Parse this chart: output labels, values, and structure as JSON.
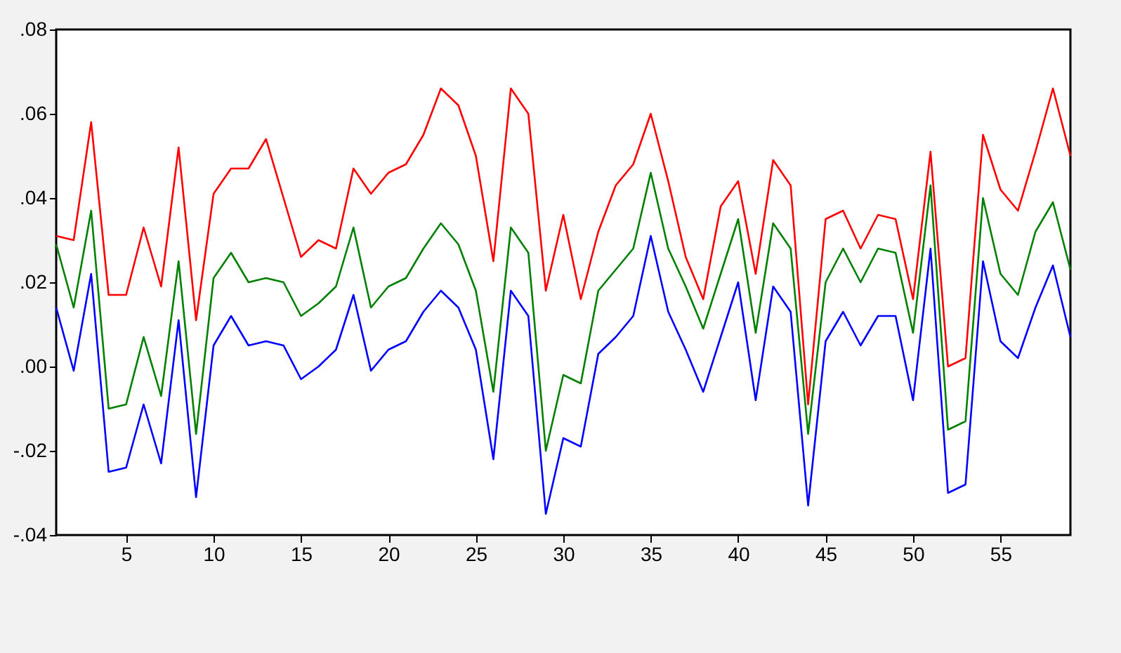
{
  "chart_data": {
    "type": "line",
    "x": [
      1,
      2,
      3,
      4,
      5,
      6,
      7,
      8,
      9,
      10,
      11,
      12,
      13,
      14,
      15,
      16,
      17,
      18,
      19,
      20,
      21,
      22,
      23,
      24,
      25,
      26,
      27,
      28,
      29,
      30,
      31,
      32,
      33,
      34,
      35,
      36,
      37,
      38,
      39,
      40,
      41,
      42,
      43,
      44,
      45,
      46,
      47,
      48,
      49,
      50,
      51,
      52,
      53,
      54,
      55,
      56,
      57,
      58,
      59
    ],
    "xlim": [
      1,
      59
    ],
    "xticks": [
      5,
      10,
      15,
      20,
      25,
      30,
      35,
      40,
      45,
      50,
      55
    ],
    "ylim": [
      -0.04,
      0.08
    ],
    "yticks": [
      {
        "value": -0.04,
        "label": "-.04"
      },
      {
        "value": -0.02,
        "label": "-.02"
      },
      {
        "value": 0,
        "label": ".00"
      },
      {
        "value": 0.02,
        "label": ".02"
      },
      {
        "value": 0.04,
        "label": ".04"
      },
      {
        "value": 0.06,
        "label": ".06"
      },
      {
        "value": 0.08,
        "label": ".08"
      }
    ],
    "grid": false,
    "marker": "none",
    "line_style": "solid",
    "series": [
      {
        "color": "#0000ff",
        "values": [
          0.014,
          -0.001,
          0.022,
          -0.025,
          -0.024,
          -0.009,
          -0.023,
          0.011,
          -0.031,
          0.005,
          0.012,
          0.005,
          0.006,
          0.005,
          -0.003,
          0.0,
          0.004,
          0.017,
          -0.001,
          0.004,
          0.006,
          0.013,
          0.018,
          0.014,
          0.004,
          -0.022,
          0.018,
          0.012,
          -0.035,
          -0.017,
          -0.019,
          0.003,
          0.007,
          0.012,
          0.031,
          0.013,
          0.004,
          -0.006,
          0.007,
          0.02,
          -0.008,
          0.019,
          0.013,
          -0.033,
          0.006,
          0.013,
          0.005,
          0.012,
          0.012,
          -0.008,
          0.028,
          -0.03,
          -0.028,
          0.025,
          0.006,
          0.002,
          0.014,
          0.024,
          0.007
        ]
      },
      {
        "color": "#ff0000",
        "values": [
          0.031,
          0.03,
          0.058,
          0.017,
          0.017,
          0.033,
          0.019,
          0.052,
          0.011,
          0.041,
          0.047,
          0.047,
          0.054,
          0.04,
          0.026,
          0.03,
          0.028,
          0.047,
          0.041,
          0.046,
          0.048,
          0.055,
          0.066,
          0.062,
          0.05,
          0.025,
          0.066,
          0.06,
          0.018,
          0.036,
          0.016,
          0.032,
          0.043,
          0.048,
          0.06,
          0.044,
          0.026,
          0.016,
          0.038,
          0.044,
          0.022,
          0.049,
          0.043,
          -0.009,
          0.035,
          0.037,
          0.028,
          0.036,
          0.035,
          0.016,
          0.051,
          0.0,
          0.002,
          0.055,
          0.042,
          0.037,
          0.051,
          0.066,
          0.05
        ]
      },
      {
        "color": "#008000",
        "values": [
          0.029,
          0.014,
          0.037,
          -0.01,
          -0.009,
          0.007,
          -0.007,
          0.025,
          -0.016,
          0.021,
          0.027,
          0.02,
          0.021,
          0.02,
          0.012,
          0.015,
          0.019,
          0.033,
          0.014,
          0.019,
          0.021,
          0.028,
          0.034,
          0.029,
          0.018,
          -0.006,
          0.033,
          0.027,
          -0.02,
          -0.002,
          -0.004,
          0.018,
          0.023,
          0.028,
          0.046,
          0.028,
          0.019,
          0.009,
          0.022,
          0.035,
          0.008,
          0.034,
          0.028,
          -0.016,
          0.02,
          0.028,
          0.02,
          0.028,
          0.027,
          0.008,
          0.043,
          -0.015,
          -0.013,
          0.04,
          0.022,
          0.017,
          0.032,
          0.039,
          0.023
        ]
      }
    ]
  }
}
